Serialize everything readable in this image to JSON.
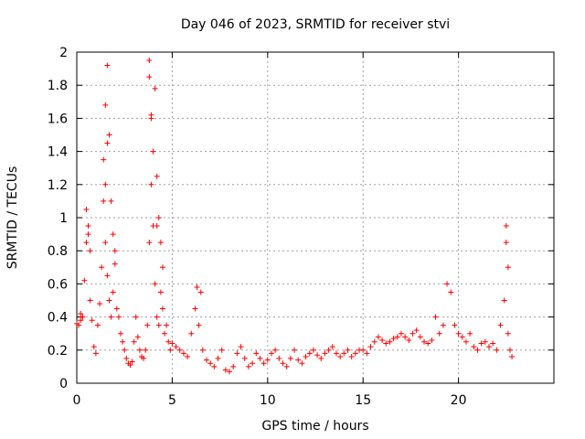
{
  "chart_data": {
    "type": "scatter",
    "title": "Day 046 of 2023, SRMTID for receiver stvi",
    "xlabel": "GPS time / hours",
    "ylabel": "SRMTID / TECUs",
    "xlim": [
      0,
      25
    ],
    "ylim": [
      0,
      2
    ],
    "xticks": [
      0,
      5,
      10,
      15,
      20
    ],
    "yticks": [
      0,
      0.2,
      0.4,
      0.6,
      0.8,
      1,
      1.2,
      1.4,
      1.6,
      1.8,
      2
    ],
    "grid": true,
    "marker": "plus",
    "color": "#ff0000",
    "series": [
      {
        "name": "SRMTID",
        "x": [
          0.0,
          0.1,
          0.2,
          0.3,
          0.4,
          0.5,
          0.6,
          0.7,
          0.8,
          0.9,
          1.0,
          1.1,
          1.2,
          1.3,
          1.4,
          1.5,
          1.6,
          1.7,
          1.8,
          1.9,
          2.0,
          2.1,
          2.2,
          2.3,
          2.4,
          2.5,
          2.6,
          2.7,
          2.8,
          2.9,
          3.0,
          3.1,
          3.2,
          3.3,
          3.4,
          3.5,
          3.6,
          3.7,
          3.8,
          3.9,
          4.0,
          4.1,
          4.2,
          4.3,
          4.4,
          4.5,
          4.6,
          4.7,
          4.8,
          4.9,
          5.0,
          5.2,
          5.4,
          5.6,
          5.8,
          6.0,
          6.2,
          6.4,
          6.6,
          6.8,
          7.0,
          7.2,
          7.4,
          7.6,
          7.8,
          8.0,
          8.2,
          8.4,
          8.6,
          8.8,
          9.0,
          9.2,
          9.4,
          9.6,
          9.8,
          10.0,
          10.2,
          10.4,
          10.6,
          10.8,
          11.0,
          11.2,
          11.4,
          11.6,
          11.8,
          12.0,
          12.2,
          12.4,
          12.6,
          12.8,
          13.0,
          13.2,
          13.4,
          13.6,
          13.8,
          14.0,
          14.2,
          14.4,
          14.6,
          14.8,
          15.0,
          15.2,
          15.4,
          15.6,
          15.8,
          16.0,
          16.2,
          16.4,
          16.6,
          16.8,
          17.0,
          17.2,
          17.4,
          17.6,
          17.8,
          18.0,
          18.2,
          18.4,
          18.6,
          18.8,
          19.0,
          19.2,
          19.4,
          19.6,
          19.8,
          20.0,
          20.2,
          20.4,
          20.6,
          20.8,
          21.0,
          21.2,
          21.4,
          21.6,
          21.8,
          22.0,
          22.2,
          22.4,
          22.5,
          22.6,
          22.7,
          22.8,
          0.2,
          0.3,
          0.5,
          0.6,
          0.7,
          1.4,
          1.5,
          1.6,
          1.7,
          1.8,
          1.9,
          2.0,
          3.8,
          3.9,
          4.0,
          4.1,
          4.2,
          4.3,
          4.4,
          4.5,
          1.5,
          1.6,
          3.8,
          3.9,
          4.2,
          22.5,
          22.6,
          6.3,
          6.5
        ],
        "y": [
          0.36,
          0.35,
          0.38,
          0.4,
          0.62,
          0.85,
          0.95,
          0.5,
          0.38,
          0.22,
          0.18,
          0.35,
          0.48,
          0.7,
          1.1,
          0.85,
          0.65,
          0.5,
          0.4,
          0.55,
          0.72,
          0.45,
          0.4,
          0.3,
          0.25,
          0.2,
          0.15,
          0.12,
          0.11,
          0.13,
          0.25,
          0.4,
          0.28,
          0.2,
          0.16,
          0.15,
          0.2,
          0.35,
          0.85,
          1.2,
          0.95,
          0.6,
          0.4,
          0.35,
          0.55,
          0.45,
          0.3,
          0.35,
          0.25,
          0.2,
          0.24,
          0.22,
          0.2,
          0.18,
          0.16,
          0.3,
          0.45,
          0.35,
          0.2,
          0.14,
          0.12,
          0.1,
          0.15,
          0.2,
          0.08,
          0.07,
          0.1,
          0.18,
          0.22,
          0.15,
          0.1,
          0.12,
          0.18,
          0.15,
          0.12,
          0.14,
          0.18,
          0.2,
          0.15,
          0.12,
          0.1,
          0.15,
          0.2,
          0.14,
          0.12,
          0.16,
          0.18,
          0.2,
          0.17,
          0.15,
          0.18,
          0.2,
          0.22,
          0.18,
          0.16,
          0.18,
          0.2,
          0.16,
          0.18,
          0.2,
          0.2,
          0.18,
          0.22,
          0.25,
          0.28,
          0.26,
          0.24,
          0.25,
          0.27,
          0.28,
          0.3,
          0.28,
          0.26,
          0.3,
          0.32,
          0.28,
          0.25,
          0.24,
          0.26,
          0.4,
          0.3,
          0.35,
          0.6,
          0.55,
          0.35,
          0.3,
          0.28,
          0.25,
          0.3,
          0.22,
          0.2,
          0.24,
          0.25,
          0.22,
          0.24,
          0.2,
          0.35,
          0.5,
          0.95,
          0.3,
          0.2,
          0.16,
          0.42,
          0.4,
          1.05,
          0.9,
          0.8,
          1.35,
          1.68,
          1.92,
          1.5,
          1.1,
          0.9,
          0.8,
          1.95,
          1.6,
          1.4,
          1.78,
          1.25,
          1.0,
          0.85,
          0.7,
          1.2,
          1.45,
          1.85,
          1.62,
          0.95,
          0.85,
          0.7,
          0.58,
          0.55
        ],
        "annotations": []
      }
    ]
  }
}
